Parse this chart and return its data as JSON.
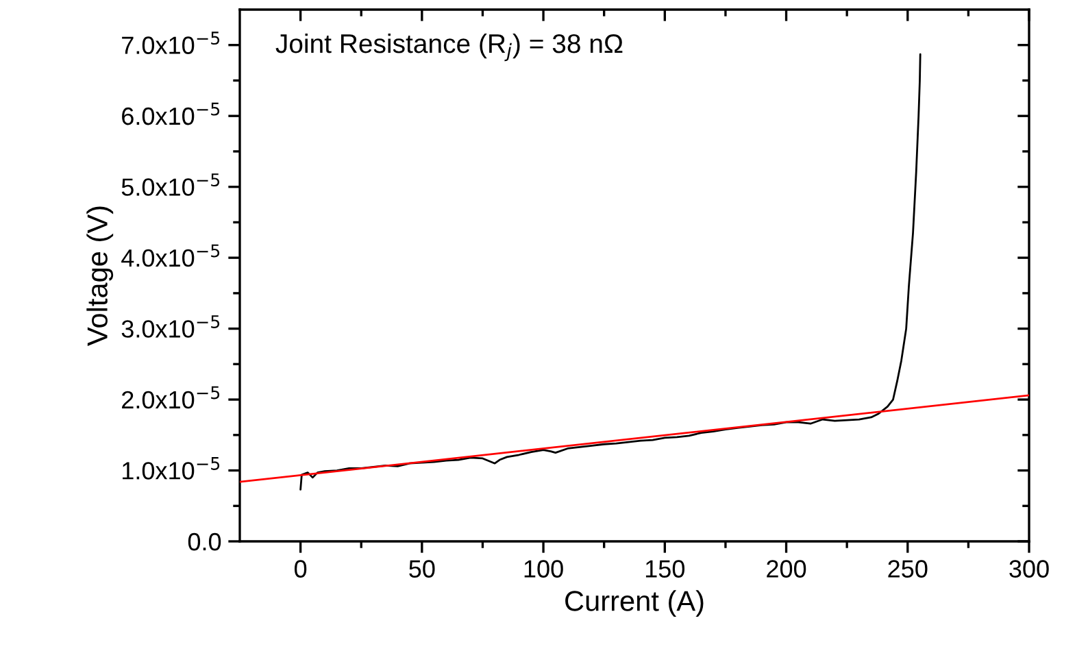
{
  "chart_data": {
    "type": "line",
    "xlabel": "Current (A)",
    "ylabel": "Voltage (V)",
    "annotations": [
      "Joint Resistance (R$_{j}$) = 38 nΩ"
    ],
    "xlim": [
      -25,
      300
    ],
    "xticks": [
      0,
      50,
      100,
      150,
      200,
      250,
      300
    ],
    "ylim": [
      0,
      7.5e-05
    ],
    "yticks": [
      {
        "value": 0,
        "label": "0.0"
      },
      {
        "value": 1e-05,
        "label": "1.0x10$^{−5}$"
      },
      {
        "value": 2e-05,
        "label": "2.0x10$^{−5}$"
      },
      {
        "value": 3e-05,
        "label": "3.0x10$^{−5}$"
      },
      {
        "value": 4e-05,
        "label": "4.0x10$^{−5}$"
      },
      {
        "value": 5e-05,
        "label": "5.0x10$^{−5}$"
      },
      {
        "value": 6e-05,
        "label": "6.0x10$^{−5}$"
      },
      {
        "value": 7e-05,
        "label": "7.0x10$^{−5}$"
      }
    ],
    "grid": false,
    "marker": "none",
    "line_style": "solid",
    "series": [
      {
        "color": "#000000",
        "x": [
          0,
          0.5,
          3,
          5,
          7,
          10,
          15,
          20,
          25,
          30,
          35,
          40,
          45,
          50,
          55,
          60,
          65,
          70,
          75,
          80,
          82,
          85,
          90,
          95,
          100,
          103,
          105,
          110,
          115,
          120,
          125,
          130,
          135,
          140,
          145,
          150,
          155,
          160,
          165,
          170,
          175,
          180,
          185,
          190,
          195,
          200,
          205,
          210,
          215,
          220,
          225,
          230,
          235,
          238,
          241.7,
          244,
          245.7,
          247.4,
          249.4,
          250.5,
          252.2,
          253.5,
          254.5,
          255,
          255.2
        ],
        "values": [
          7.3e-06,
          9.4e-06,
          9.7e-06,
          9e-06,
          9.7e-06,
          9.9e-06,
          1e-05,
          1.03e-05,
          1.03e-05,
          1.05e-05,
          1.07e-05,
          1.06e-05,
          1.1e-05,
          1.11e-05,
          1.12e-05,
          1.14e-05,
          1.15e-05,
          1.18e-05,
          1.17e-05,
          1.1e-05,
          1.15e-05,
          1.19e-05,
          1.22e-05,
          1.26e-05,
          1.29e-05,
          1.27e-05,
          1.25e-05,
          1.31e-05,
          1.33e-05,
          1.35e-05,
          1.37e-05,
          1.38e-05,
          1.4e-05,
          1.42e-05,
          1.43e-05,
          1.46e-05,
          1.47e-05,
          1.49e-05,
          1.53e-05,
          1.55e-05,
          1.58e-05,
          1.6e-05,
          1.62e-05,
          1.64e-05,
          1.65e-05,
          1.68e-05,
          1.68e-05,
          1.66e-05,
          1.72e-05,
          1.7e-05,
          1.71e-05,
          1.72e-05,
          1.75e-05,
          1.8e-05,
          1.9e-05,
          2e-05,
          2.26e-05,
          2.55e-05,
          3e-05,
          3.6e-05,
          4.35e-05,
          5.2e-05,
          6e-05,
          6.5e-05,
          6.87e-05
        ]
      },
      {
        "color": "#ff0000",
        "x": [
          -25,
          300
        ],
        "values": [
          8.4e-06,
          2.06e-05
        ]
      }
    ]
  }
}
